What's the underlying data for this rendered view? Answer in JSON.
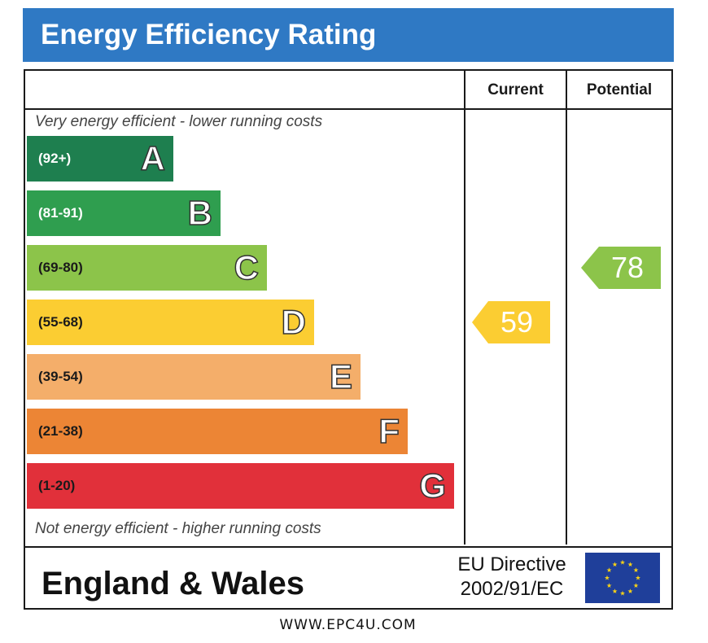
{
  "chart_data": {
    "type": "bar",
    "title": "Energy Efficiency Rating",
    "columns": [
      "Current",
      "Potential"
    ],
    "top_note": "Very energy efficient - lower running costs",
    "bottom_note": "Not energy efficient - higher running costs",
    "bands": [
      {
        "letter": "A",
        "range": "(92+)",
        "color": "#1e7f4f",
        "text_color": "#ffffff"
      },
      {
        "letter": "B",
        "range": "(81-91)",
        "color": "#2f9e4f",
        "text_color": "#ffffff"
      },
      {
        "letter": "C",
        "range": "(69-80)",
        "color": "#8cc44a",
        "text_color": "#1a1a1a"
      },
      {
        "letter": "D",
        "range": "(55-68)",
        "color": "#fbcd32",
        "text_color": "#1a1a1a"
      },
      {
        "letter": "E",
        "range": "(39-54)",
        "color": "#f4ae6a",
        "text_color": "#1a1a1a"
      },
      {
        "letter": "F",
        "range": "(21-38)",
        "color": "#ec8535",
        "text_color": "#1a1a1a"
      },
      {
        "letter": "G",
        "range": "(1-20)",
        "color": "#e1303a",
        "text_color": "#1a1a1a"
      }
    ],
    "current": {
      "value": 59,
      "band": "D",
      "color": "#fbcd32"
    },
    "potential": {
      "value": 78,
      "band": "C",
      "color": "#8cc44a"
    }
  },
  "footer": {
    "region": "England & Wales",
    "directive_line1": "EU Directive",
    "directive_line2": "2002/91/EC",
    "flag_icon": "eu-flag-icon",
    "flag_color": "#1f3f9a",
    "star_color": "#f7d117"
  },
  "credit": "WWW.EPC4U.COM"
}
